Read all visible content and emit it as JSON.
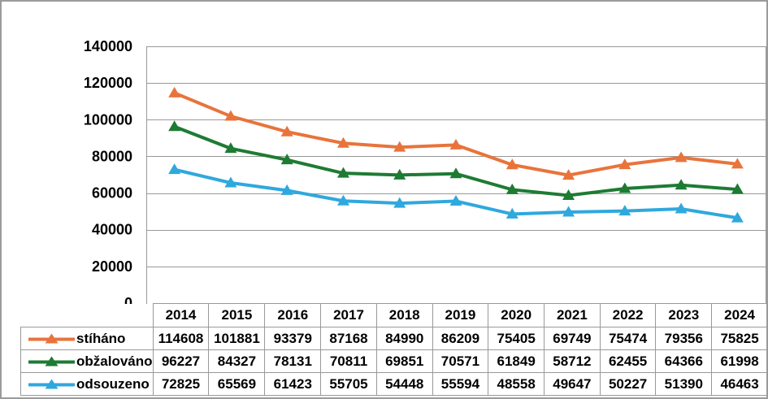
{
  "colors": {
    "stihano": "#E8743B",
    "obzalovano": "#1E7B33",
    "odsouzeno": "#2FA8DD",
    "gridline": "#999999",
    "frame": "#9B9B9B",
    "text": "#000000",
    "background": "#FFFFFF"
  },
  "chart_data": {
    "type": "line",
    "title": "",
    "xlabel": "",
    "ylabel": "",
    "categories": [
      "2014",
      "2015",
      "2016",
      "2017",
      "2018",
      "2019",
      "2020",
      "2021",
      "2022",
      "2023",
      "2024"
    ],
    "series": [
      {
        "id": "stihano",
        "name": "stíháno",
        "color": "#E8743B",
        "marker": "triangle-up",
        "values": [
          114608,
          101881,
          93379,
          87168,
          84990,
          86209,
          75405,
          69749,
          75474,
          79356,
          75825
        ]
      },
      {
        "id": "obzalovano",
        "name": "obžalováno",
        "color": "#1E7B33",
        "marker": "triangle-up",
        "values": [
          96227,
          84327,
          78131,
          70811,
          69851,
          70571,
          61849,
          58712,
          62455,
          64366,
          61998
        ]
      },
      {
        "id": "odsouzeno",
        "name": "odsouzeno",
        "color": "#2FA8DD",
        "marker": "triangle-up",
        "values": [
          72825,
          65569,
          61423,
          55705,
          54448,
          55594,
          48558,
          49647,
          50227,
          51390,
          46463
        ]
      }
    ],
    "ylim": [
      0,
      140000
    ],
    "ytick_step": 20000,
    "yticks": [
      "0",
      "20000",
      "40000",
      "60000",
      "80000",
      "100000",
      "120000",
      "140000"
    ],
    "grid": "horizontal",
    "legend_position": "table-left",
    "table_legend": true
  }
}
